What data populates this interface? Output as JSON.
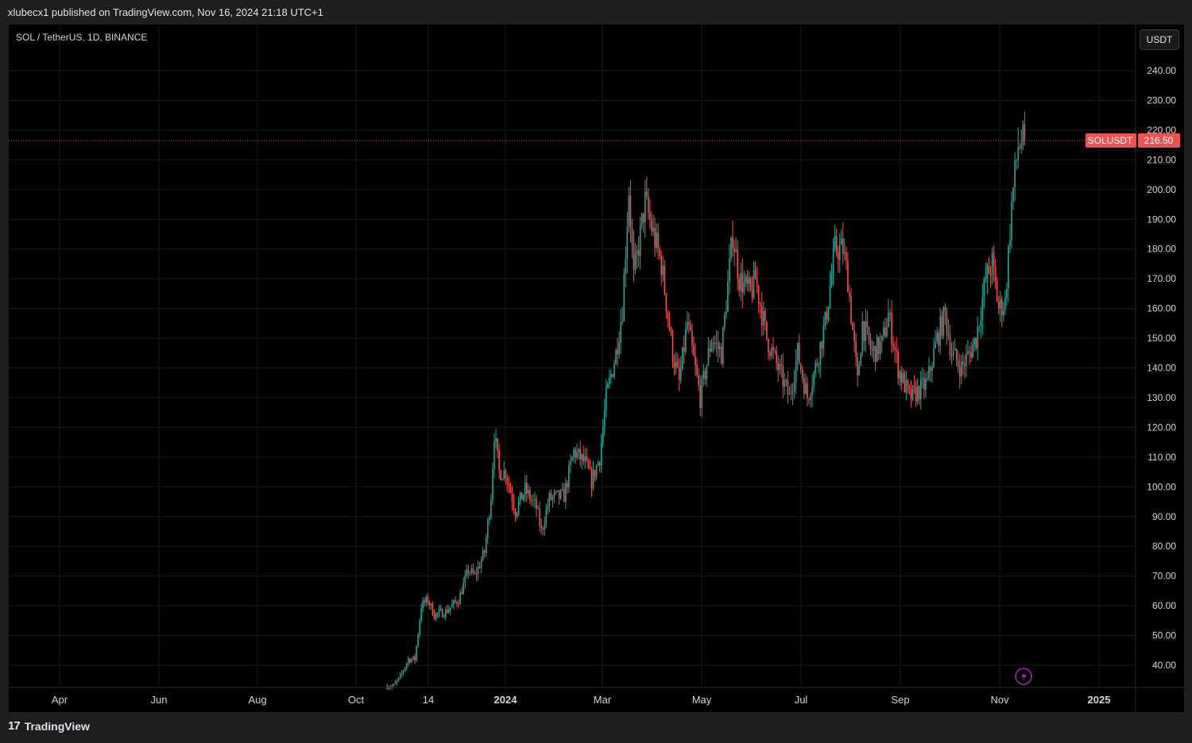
{
  "header": {
    "publisher_line": "xlubecx1 published on TradingView.com, Nov 16, 2024 21:18 UTC+1"
  },
  "symbol": {
    "description": "SOL / TetherUS, 1D, BINANCE"
  },
  "currency_button": "USDT",
  "footer": {
    "logo_text": "TradingView",
    "logo_mark": "17"
  },
  "colors": {
    "up": "#26a69a",
    "down": "#ef5350",
    "grid": "#1a1a1a",
    "price_line": "#ef5350",
    "background": "#000000"
  },
  "chart_data": {
    "type": "candlestick",
    "title": "SOL / TetherUS, 1D, BINANCE",
    "y_axis_label": "USDT",
    "ylim": [
      32,
      250
    ],
    "y_ticks": [
      "40.00",
      "50.00",
      "60.00",
      "70.00",
      "80.00",
      "90.00",
      "100.00",
      "110.00",
      "120.00",
      "130.00",
      "140.00",
      "150.00",
      "160.00",
      "170.00",
      "180.00",
      "190.00",
      "200.00",
      "210.00",
      "220.00",
      "230.00",
      "240.00"
    ],
    "x_ticks": [
      {
        "label": "Apr",
        "bold": false
      },
      {
        "label": "Jun",
        "bold": false
      },
      {
        "label": "Aug",
        "bold": false
      },
      {
        "label": "Oct",
        "bold": false
      },
      {
        "label": "14",
        "bold": false
      },
      {
        "label": "2024",
        "bold": true
      },
      {
        "label": "Mar",
        "bold": false
      },
      {
        "label": "May",
        "bold": false
      },
      {
        "label": "Jul",
        "bold": false
      },
      {
        "label": "Sep",
        "bold": false
      },
      {
        "label": "Nov",
        "bold": false
      },
      {
        "label": "2025",
        "bold": true
      }
    ],
    "last_price": {
      "symbol": "SOLUSDT",
      "value": 216.5
    },
    "series_start": "2023-10-20",
    "anchors": [
      [
        "2023-10-20",
        33
      ],
      [
        "2023-10-24",
        33
      ],
      [
        "2023-10-28",
        36
      ],
      [
        "2023-11-02",
        42
      ],
      [
        "2023-11-06",
        42
      ],
      [
        "2023-11-10",
        60
      ],
      [
        "2023-11-14",
        62
      ],
      [
        "2023-11-18",
        57
      ],
      [
        "2023-11-25",
        58
      ],
      [
        "2023-12-03",
        62
      ],
      [
        "2023-12-09",
        72
      ],
      [
        "2023-12-13",
        70
      ],
      [
        "2023-12-19",
        78
      ],
      [
        "2023-12-23",
        97
      ],
      [
        "2023-12-25",
        118
      ],
      [
        "2023-12-28",
        105
      ],
      [
        "2024-01-01",
        105
      ],
      [
        "2024-01-07",
        92
      ],
      [
        "2024-01-13",
        99
      ],
      [
        "2024-01-20",
        93
      ],
      [
        "2024-01-23",
        85
      ],
      [
        "2024-01-28",
        96
      ],
      [
        "2024-02-06",
        97
      ],
      [
        "2024-02-12",
        112
      ],
      [
        "2024-02-19",
        108
      ],
      [
        "2024-02-23",
        102
      ],
      [
        "2024-02-28",
        110
      ],
      [
        "2024-03-03",
        130
      ],
      [
        "2024-03-09",
        145
      ],
      [
        "2024-03-13",
        160
      ],
      [
        "2024-03-17",
        200
      ],
      [
        "2024-03-20",
        170
      ],
      [
        "2024-03-27",
        196
      ],
      [
        "2024-04-01",
        185
      ],
      [
        "2024-04-06",
        175
      ],
      [
        "2024-04-13",
        145
      ],
      [
        "2024-04-17",
        135
      ],
      [
        "2024-04-22",
        155
      ],
      [
        "2024-04-30",
        130
      ],
      [
        "2024-05-07",
        150
      ],
      [
        "2024-05-13",
        145
      ],
      [
        "2024-05-20",
        185
      ],
      [
        "2024-05-24",
        170
      ],
      [
        "2024-05-31",
        165
      ],
      [
        "2024-06-03",
        170
      ],
      [
        "2024-06-10",
        150
      ],
      [
        "2024-06-17",
        140
      ],
      [
        "2024-06-24",
        130
      ],
      [
        "2024-06-29",
        145
      ],
      [
        "2024-07-05",
        130
      ],
      [
        "2024-07-10",
        140
      ],
      [
        "2024-07-16",
        155
      ],
      [
        "2024-07-22",
        180
      ],
      [
        "2024-07-27",
        180
      ],
      [
        "2024-07-30",
        170
      ],
      [
        "2024-08-05",
        135
      ],
      [
        "2024-08-08",
        155
      ],
      [
        "2024-08-14",
        145
      ],
      [
        "2024-08-20",
        148
      ],
      [
        "2024-08-24",
        158
      ],
      [
        "2024-08-30",
        140
      ],
      [
        "2024-09-06",
        130
      ],
      [
        "2024-09-11",
        132
      ],
      [
        "2024-09-17",
        135
      ],
      [
        "2024-09-23",
        150
      ],
      [
        "2024-09-28",
        158
      ],
      [
        "2024-10-02",
        145
      ],
      [
        "2024-10-08",
        140
      ],
      [
        "2024-10-13",
        145
      ],
      [
        "2024-10-17",
        150
      ],
      [
        "2024-10-23",
        170
      ],
      [
        "2024-10-27",
        175
      ],
      [
        "2024-10-31",
        160
      ],
      [
        "2024-11-04",
        162
      ],
      [
        "2024-11-08",
        195
      ],
      [
        "2024-11-12",
        215
      ],
      [
        "2024-11-16",
        216.5
      ]
    ]
  }
}
